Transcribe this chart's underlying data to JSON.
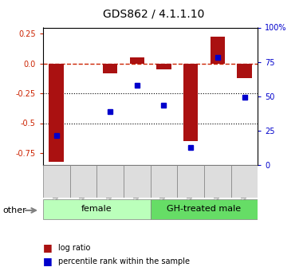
{
  "title": "GDS862 / 4.1.1.10",
  "samples": [
    "GSM19175",
    "GSM19176",
    "GSM19177",
    "GSM19178",
    "GSM19179",
    "GSM19180",
    "GSM19181",
    "GSM19182"
  ],
  "log_ratio": [
    -0.82,
    0.0,
    -0.08,
    0.05,
    -0.05,
    -0.65,
    0.22,
    -0.12
  ],
  "percentile": [
    15,
    null,
    35,
    57,
    40,
    5,
    80,
    47
  ],
  "groups": [
    {
      "label": "female",
      "start": 0,
      "end": 4,
      "color": "#bbffbb"
    },
    {
      "label": "GH-treated male",
      "start": 4,
      "end": 8,
      "color": "#66dd66"
    }
  ],
  "bar_color": "#aa1111",
  "dot_color": "#0000cc",
  "ylim_left": [
    -0.85,
    0.3
  ],
  "ylim_right": [
    0,
    100
  ],
  "yticks_left": [
    0.25,
    0.0,
    -0.25,
    -0.5,
    -0.75
  ],
  "yticks_right": [
    100,
    75,
    50,
    25,
    0
  ],
  "dotted_lines": [
    -0.25,
    -0.5
  ],
  "background_color": "#ffffff",
  "plot_bg_color": "#ffffff",
  "title_color": "#000000",
  "left_tick_color": "#cc2200",
  "right_tick_color": "#0000cc",
  "bar_width": 0.55,
  "other_label": "other",
  "legend_items": [
    "log ratio",
    "percentile rank within the sample"
  ]
}
